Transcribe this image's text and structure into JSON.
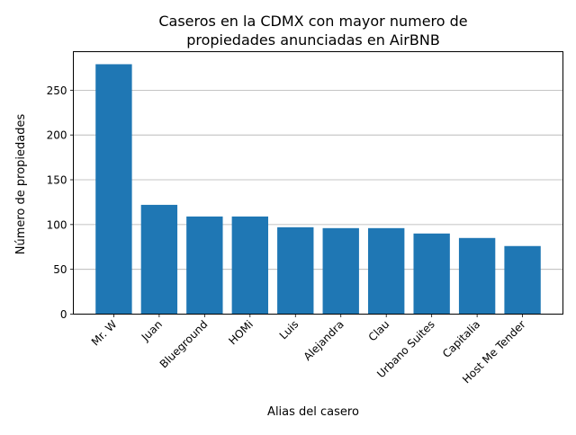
{
  "chart_data": {
    "type": "bar",
    "title_lines": [
      "Caseros en la CDMX con mayor numero de",
      "propiedades anunciadas en AirBNB"
    ],
    "xlabel": "Alias del casero",
    "ylabel": "Número de propiedades",
    "categories": [
      "Mr. W",
      "Juan",
      "Blueground",
      "HOMi",
      "Luis",
      "Alejandra",
      "Clau",
      "Urbano Suites",
      "Capitalia",
      "Host Me Tender"
    ],
    "values": [
      279,
      122,
      109,
      109,
      97,
      96,
      96,
      90,
      85,
      76
    ],
    "ylim": [
      0,
      293
    ],
    "yticks": [
      0,
      50,
      100,
      150,
      200,
      250
    ],
    "grid": "y",
    "bar_color": "#1f77b4",
    "grid_color": "#b0b0b0"
  }
}
